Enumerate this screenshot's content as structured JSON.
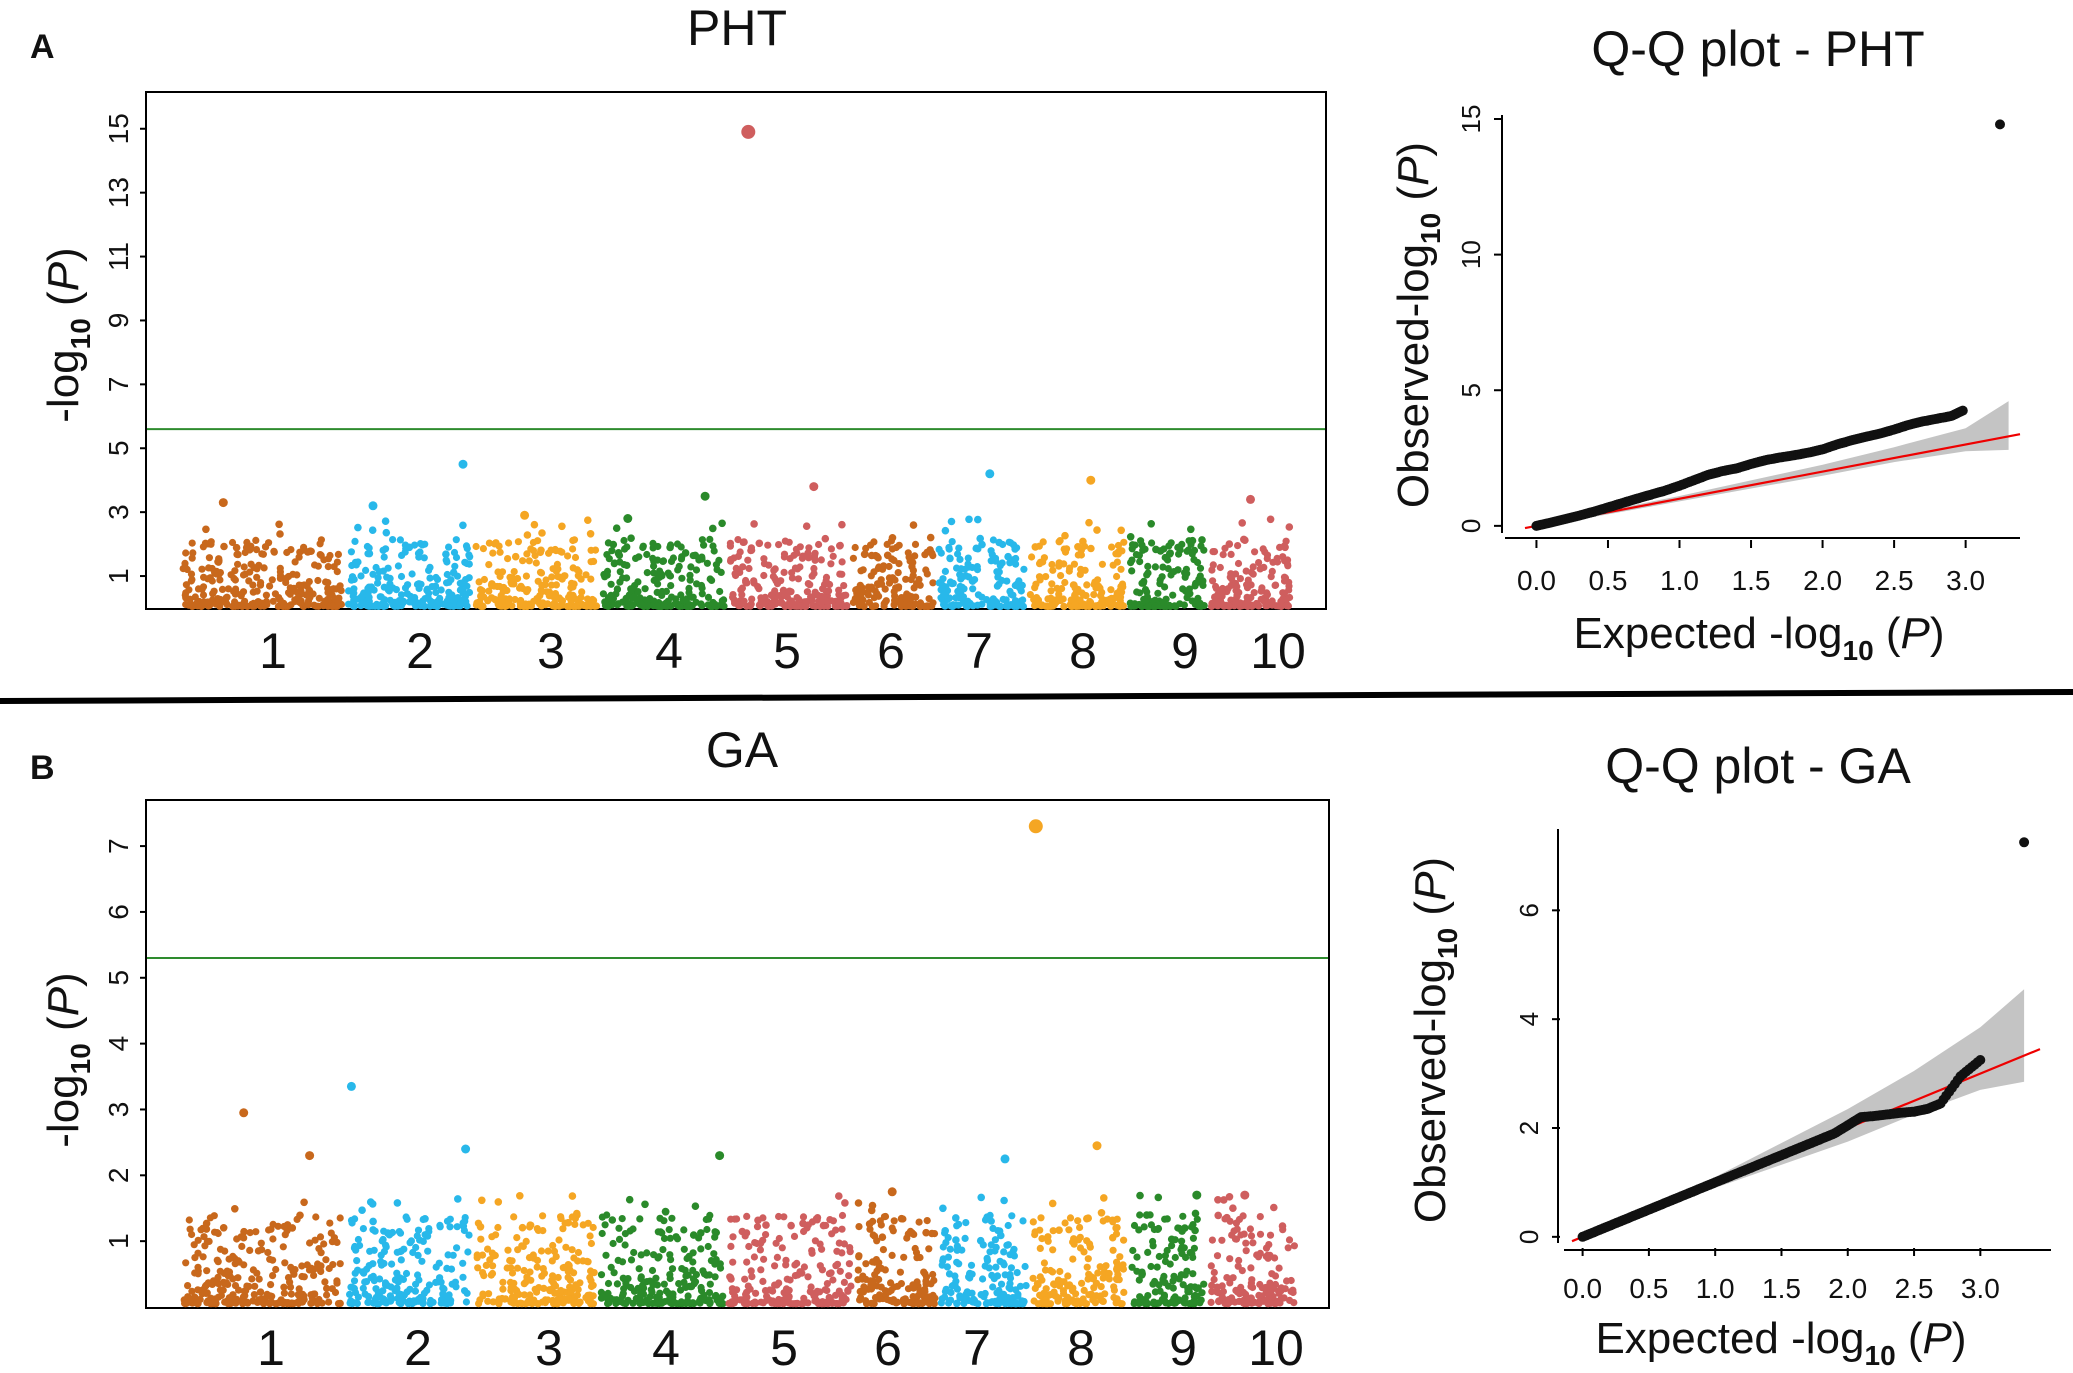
{
  "panels": [
    {
      "label": "A"
    },
    {
      "label": "B"
    }
  ],
  "chart_data": [
    {
      "id": "manhattan-pht",
      "type": "scatter",
      "title": "PHT",
      "ylabel_prefix": "-log",
      "ylabel_sub": "10",
      "ylabel_suffix": "(P)",
      "ylabel_italic": "P",
      "yticks": [
        1,
        3,
        5,
        7,
        9,
        11,
        13,
        15
      ],
      "ylim": [
        0,
        15.9
      ],
      "chromosomes": [
        "1",
        "2",
        "3",
        "4",
        "5",
        "6",
        "7",
        "8",
        "9",
        "10"
      ],
      "chrom_colors": [
        "#c8681c",
        "#28b8ea",
        "#f5a623",
        "#2a8a2a",
        "#cf5e5e",
        "#c8681c",
        "#28b8ea",
        "#f5a623",
        "#2a8a2a",
        "#cf5e5e"
      ],
      "threshold": 5.6,
      "threshold_color": "#2e8b2e",
      "peaks": [
        {
          "chrom": "1",
          "pos": 0.25,
          "value": 3.3
        },
        {
          "chrom": "2",
          "pos": 0.2,
          "value": 3.2
        },
        {
          "chrom": "2",
          "pos": 0.95,
          "value": 4.5
        },
        {
          "chrom": "3",
          "pos": 0.4,
          "value": 2.9
        },
        {
          "chrom": "4",
          "pos": 0.2,
          "value": 2.8
        },
        {
          "chrom": "4",
          "pos": 0.85,
          "value": 3.5
        },
        {
          "chrom": "5",
          "pos": 0.15,
          "value": 14.9
        },
        {
          "chrom": "5",
          "pos": 0.72,
          "value": 3.8
        },
        {
          "chrom": "7",
          "pos": 0.6,
          "value": 4.2
        },
        {
          "chrom": "8",
          "pos": 0.65,
          "value": 4.0
        },
        {
          "chrom": "10",
          "pos": 0.5,
          "value": 3.4
        }
      ]
    },
    {
      "id": "qq-pht",
      "type": "scatter",
      "title": "Q-Q plot - PHT",
      "xlabel_prefix": "Expected -log",
      "xlabel_sub": "10",
      "xlabel_italic": "P",
      "ylabel_prefix": "Observed-log",
      "ylabel_sub": "10",
      "ylabel_italic": "P",
      "xticks": [
        "0.0",
        "0.5",
        "1.0",
        "1.5",
        "2.0",
        "2.5",
        "3.0"
      ],
      "yticks": [
        "0",
        "5",
        "10",
        "15"
      ],
      "xlim": [
        -0.08,
        3.38
      ],
      "ylim": [
        -0.3,
        15.7
      ],
      "line_color": "#ee0000",
      "points_x": [
        0,
        0.1,
        0.2,
        0.3,
        0.4,
        0.5,
        0.6,
        0.7,
        0.8,
        0.9,
        1.0,
        1.1,
        1.2,
        1.3,
        1.4,
        1.5,
        1.6,
        1.7,
        1.8,
        1.9,
        2.0,
        2.1,
        2.2,
        2.3,
        2.4,
        2.5,
        2.6,
        2.7,
        2.8,
        2.9,
        2.98,
        3.24
      ],
      "points_y": [
        0,
        0.12,
        0.25,
        0.38,
        0.52,
        0.68,
        0.84,
        1.0,
        1.15,
        1.3,
        1.48,
        1.68,
        1.88,
        2.02,
        2.12,
        2.28,
        2.42,
        2.52,
        2.6,
        2.7,
        2.82,
        3.0,
        3.15,
        3.28,
        3.4,
        3.55,
        3.72,
        3.85,
        3.95,
        4.05,
        4.25,
        14.8
      ],
      "ci_x": [
        0,
        1.0,
        2.0,
        2.5,
        3.0,
        3.3
      ],
      "ci_upper": [
        0.05,
        1.1,
        2.25,
        2.9,
        3.6,
        4.6
      ],
      "ci_lower": [
        -0.05,
        0.9,
        1.85,
        2.35,
        2.75,
        2.8
      ]
    },
    {
      "id": "manhattan-ga",
      "type": "scatter",
      "title": "GA",
      "ylabel_prefix": "-log",
      "ylabel_sub": "10",
      "ylabel_suffix": "(P)",
      "ylabel_italic": "P",
      "yticks": [
        1,
        2,
        3,
        4,
        5,
        6,
        7
      ],
      "ylim": [
        0,
        7.7
      ],
      "chromosomes": [
        "1",
        "2",
        "3",
        "4",
        "5",
        "6",
        "7",
        "8",
        "9",
        "10"
      ],
      "chrom_colors": [
        "#c8681c",
        "#28b8ea",
        "#f5a623",
        "#2a8a2a",
        "#cf5e5e",
        "#c8681c",
        "#28b8ea",
        "#f5a623",
        "#2a8a2a",
        "#cf5e5e"
      ],
      "threshold": 5.3,
      "threshold_color": "#2e8b2e",
      "peaks": [
        {
          "chrom": "1",
          "pos": 0.38,
          "value": 2.95
        },
        {
          "chrom": "1",
          "pos": 0.8,
          "value": 2.3
        },
        {
          "chrom": "2",
          "pos": 0.02,
          "value": 3.35
        },
        {
          "chrom": "2",
          "pos": 0.98,
          "value": 2.4
        },
        {
          "chrom": "4",
          "pos": 0.98,
          "value": 2.3
        },
        {
          "chrom": "6",
          "pos": 0.45,
          "value": 1.75
        },
        {
          "chrom": "7",
          "pos": 0.75,
          "value": 2.25
        },
        {
          "chrom": "8",
          "pos": 0.02,
          "value": 7.3
        },
        {
          "chrom": "8",
          "pos": 0.7,
          "value": 2.45
        },
        {
          "chrom": "9",
          "pos": 0.9,
          "value": 1.7
        },
        {
          "chrom": "10",
          "pos": 0.4,
          "value": 1.7
        }
      ]
    },
    {
      "id": "qq-ga",
      "type": "scatter",
      "title": "Q-Q plot - GA",
      "xlabel_prefix": "Expected -log",
      "xlabel_sub": "10",
      "xlabel_italic": "P",
      "ylabel_prefix": "Observed-log",
      "ylabel_sub": "10",
      "ylabel_italic": "P",
      "xticks": [
        "0.0",
        "0.5",
        "1.0",
        "1.5",
        "2.0",
        "2.5",
        "3.0"
      ],
      "yticks": [
        "0",
        "2",
        "4",
        "6"
      ],
      "xlim": [
        -0.08,
        3.45
      ],
      "ylim": [
        -0.15,
        7.55
      ],
      "line_color": "#ee0000",
      "points_x": [
        0,
        0.1,
        0.2,
        0.3,
        0.4,
        0.5,
        0.6,
        0.7,
        0.8,
        0.9,
        1.0,
        1.1,
        1.2,
        1.3,
        1.4,
        1.5,
        1.6,
        1.7,
        1.8,
        1.9,
        2.0,
        2.1,
        2.2,
        2.3,
        2.4,
        2.5,
        2.6,
        2.7,
        2.85,
        3.0,
        3.33
      ],
      "points_y": [
        0,
        0.1,
        0.2,
        0.3,
        0.4,
        0.5,
        0.6,
        0.7,
        0.8,
        0.9,
        1.0,
        1.1,
        1.2,
        1.3,
        1.4,
        1.5,
        1.6,
        1.7,
        1.8,
        1.9,
        2.05,
        2.2,
        2.22,
        2.25,
        2.28,
        2.3,
        2.35,
        2.45,
        2.95,
        3.25,
        7.25
      ],
      "ci_x": [
        0,
        1.0,
        2.0,
        2.5,
        3.0,
        3.33
      ],
      "ci_upper": [
        0.05,
        1.1,
        2.35,
        3.05,
        3.85,
        4.55
      ],
      "ci_lower": [
        -0.05,
        0.9,
        1.75,
        2.25,
        2.7,
        2.85
      ]
    }
  ]
}
